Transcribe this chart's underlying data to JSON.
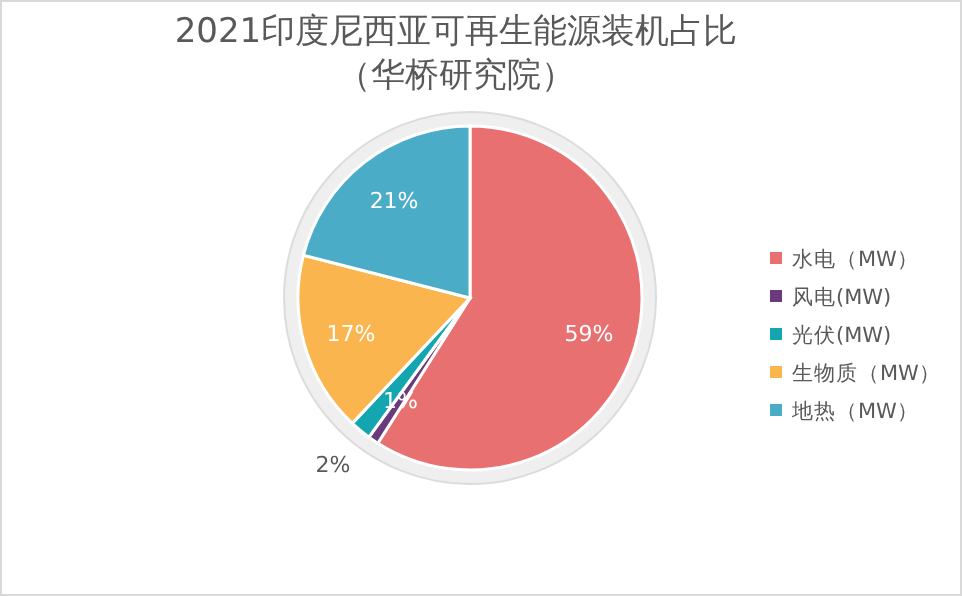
{
  "chart_data": {
    "type": "pie",
    "title": "2021印度尼西亚可再生能源装机占比",
    "subtitle": "（华桥研究院）",
    "categories": [
      "水电（MW）",
      "风电(MW)",
      "光伏(MW)",
      "生物质（MW）",
      "地热（MW）"
    ],
    "values": [
      59,
      1,
      2,
      17,
      21
    ],
    "value_labels": [
      "59%",
      "1%",
      "2%",
      "17%",
      "21%"
    ],
    "colors": [
      "#e97070",
      "#6a3b7c",
      "#13a6b1",
      "#fbb54f",
      "#4aacc6"
    ],
    "legend": "right"
  }
}
